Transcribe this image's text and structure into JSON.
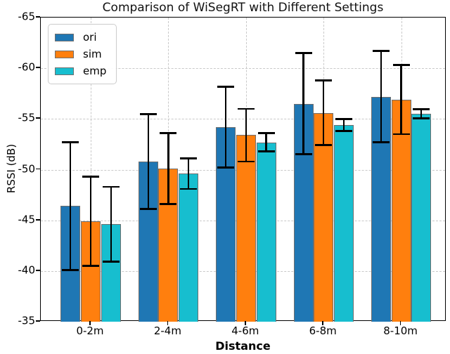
{
  "chart_data": {
    "type": "bar",
    "title": "Comparison of WiSegRT with Different Settings",
    "xlabel": "Distance",
    "ylabel": "RSSI (dB)",
    "categories": [
      "0-2m",
      "2-4m",
      "4-6m",
      "6-8m",
      "8-10m"
    ],
    "y_ticks": [
      -65,
      -60,
      -55,
      -50,
      -45,
      -40,
      -35
    ],
    "y_axis": {
      "top_value": -65,
      "bottom_value": -35,
      "inverted": true,
      "bar_baseline": -35
    },
    "grid": true,
    "legend": {
      "position": "upper-left",
      "labels": [
        "ori",
        "sim",
        "emp"
      ]
    },
    "colors": {
      "ori": "#1f77b4",
      "sim": "#ff7f0e",
      "emp": "#17becf",
      "bar_edge": "#6e6e6e",
      "error_bar": "#000000"
    },
    "series": [
      {
        "name": "ori",
        "color": "#1f77b4",
        "values": [
          -46.4,
          -50.8,
          -54.2,
          -56.5,
          -57.2
        ],
        "errors": [
          6.3,
          4.7,
          4.0,
          5.0,
          4.5
        ]
      },
      {
        "name": "sim",
        "color": "#ff7f0e",
        "values": [
          -44.9,
          -50.1,
          -53.4,
          -55.6,
          -56.9
        ],
        "errors": [
          4.4,
          3.5,
          2.6,
          3.2,
          3.4
        ]
      },
      {
        "name": "emp",
        "color": "#17becf",
        "values": [
          -44.6,
          -49.6,
          -52.7,
          -54.4,
          -55.5
        ],
        "errors": [
          3.7,
          1.5,
          0.9,
          0.6,
          0.45
        ]
      }
    ]
  }
}
